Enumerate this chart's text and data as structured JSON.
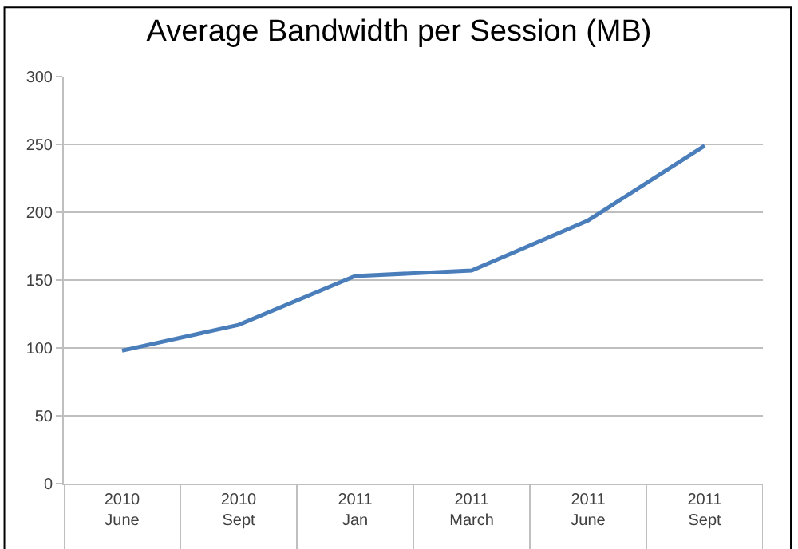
{
  "chart_data": {
    "type": "line",
    "title": "Average Bandwidth per Session (MB)",
    "categories": [
      "2010\nJune",
      "2010\nSept",
      "2011\nJan",
      "2011\nMarch",
      "2011\nJune",
      "2011\nSept"
    ],
    "series": [
      {
        "color": "#4a7ebb",
        "values": [
          98,
          117,
          153,
          157,
          194,
          249
        ]
      }
    ],
    "ylim": [
      0,
      300
    ],
    "yticks": [
      0,
      50,
      100,
      150,
      200,
      250,
      300
    ],
    "grid": "y",
    "legend": false,
    "marker": "none",
    "line_style": "solid"
  }
}
